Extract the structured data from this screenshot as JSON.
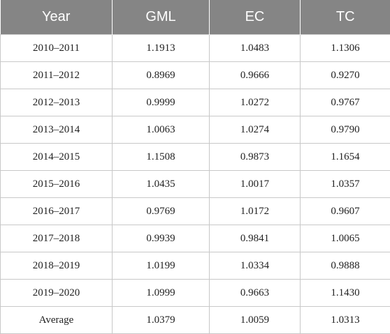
{
  "table": {
    "headers": [
      "Year",
      "GML",
      "EC",
      "TC"
    ],
    "rows": [
      [
        "2010–2011",
        "1.1913",
        "1.0483",
        "1.1306"
      ],
      [
        "2011–2012",
        "0.8969",
        "0.9666",
        "0.9270"
      ],
      [
        "2012–2013",
        "0.9999",
        "1.0272",
        "0.9767"
      ],
      [
        "2013–2014",
        "1.0063",
        "1.0274",
        "0.9790"
      ],
      [
        "2014–2015",
        "1.1508",
        "0.9873",
        "1.1654"
      ],
      [
        "2015–2016",
        "1.0435",
        "1.0017",
        "1.0357"
      ],
      [
        "2016–2017",
        "0.9769",
        "1.0172",
        "0.9607"
      ],
      [
        "2017–2018",
        "0.9939",
        "0.9841",
        "1.0065"
      ],
      [
        "2018–2019",
        "1.0199",
        "1.0334",
        "0.9888"
      ],
      [
        "2019–2020",
        "1.0999",
        "0.9663",
        "1.1430"
      ],
      [
        "Average",
        "1.0379",
        "1.0059",
        "1.0313"
      ]
    ]
  }
}
